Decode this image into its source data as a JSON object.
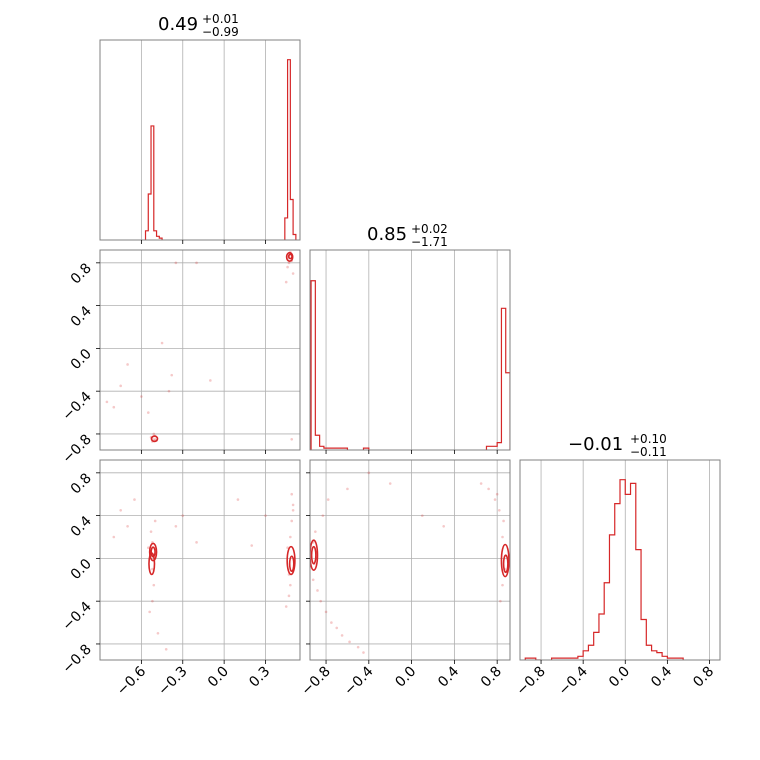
{
  "colors": {
    "line": "#d62728",
    "grid": "#b0b0b0",
    "frame": "#808080"
  },
  "chart_data": [
    {
      "type": "histogram",
      "panel": "param1-marginal",
      "title_main": "0.49",
      "title_plus": "+0.01",
      "title_minus": "−0.99",
      "xlim": [
        -0.9,
        0.55
      ],
      "xticks": [
        -0.6,
        -0.3,
        0.0,
        0.3
      ],
      "grid": true,
      "bins": [
        {
          "x0": -0.57,
          "x1": -0.55,
          "v": 0.05
        },
        {
          "x0": -0.55,
          "x1": -0.53,
          "v": 0.25
        },
        {
          "x0": -0.53,
          "x1": -0.51,
          "v": 0.62
        },
        {
          "x0": -0.51,
          "x1": -0.49,
          "v": 0.05
        },
        {
          "x0": -0.49,
          "x1": -0.47,
          "v": 0.02
        },
        {
          "x0": -0.47,
          "x1": -0.45,
          "v": 0.01
        },
        {
          "x0": 0.44,
          "x1": 0.46,
          "v": 0.12
        },
        {
          "x0": 0.46,
          "x1": 0.48,
          "v": 0.98
        },
        {
          "x0": 0.48,
          "x1": 0.5,
          "v": 0.22
        },
        {
          "x0": 0.5,
          "x1": 0.52,
          "v": 0.03
        }
      ]
    },
    {
      "type": "histogram",
      "panel": "param2-marginal",
      "title_main": "0.85",
      "title_plus": "+0.02",
      "title_minus": "−1.71",
      "xlim": [
        -0.95,
        0.92
      ],
      "xticks": [
        -0.8,
        -0.4,
        0.0,
        0.4,
        0.8
      ],
      "grid": true,
      "bins": [
        {
          "x0": -0.94,
          "x1": -0.9,
          "v": 0.92
        },
        {
          "x0": -0.9,
          "x1": -0.86,
          "v": 0.08
        },
        {
          "x0": -0.86,
          "x1": -0.82,
          "v": 0.02
        },
        {
          "x0": -0.82,
          "x1": -0.6,
          "v": 0.01
        },
        {
          "x0": -0.45,
          "x1": -0.4,
          "v": 0.01
        },
        {
          "x0": 0.7,
          "x1": 0.8,
          "v": 0.02
        },
        {
          "x0": 0.8,
          "x1": 0.84,
          "v": 0.04
        },
        {
          "x0": 0.84,
          "x1": 0.88,
          "v": 0.77
        },
        {
          "x0": 0.88,
          "x1": 0.92,
          "v": 0.42
        }
      ]
    },
    {
      "type": "histogram",
      "panel": "param3-marginal",
      "title_main": "−0.01",
      "title_plus": "+0.10",
      "title_minus": "−0.11",
      "xlim": [
        -1.0,
        0.9
      ],
      "xticks": [
        -0.8,
        -0.4,
        0.0,
        0.4,
        0.8
      ],
      "grid": true,
      "bins": [
        {
          "x0": -0.95,
          "x1": -0.9,
          "v": 0.01
        },
        {
          "x0": -0.9,
          "x1": -0.85,
          "v": 0.01
        },
        {
          "x0": -0.85,
          "x1": -0.8,
          "v": 0.0
        },
        {
          "x0": -0.7,
          "x1": -0.65,
          "v": 0.01
        },
        {
          "x0": -0.65,
          "x1": -0.6,
          "v": 0.01
        },
        {
          "x0": -0.6,
          "x1": -0.55,
          "v": 0.01
        },
        {
          "x0": -0.55,
          "x1": -0.5,
          "v": 0.01
        },
        {
          "x0": -0.5,
          "x1": -0.45,
          "v": 0.01
        },
        {
          "x0": -0.45,
          "x1": -0.4,
          "v": 0.02
        },
        {
          "x0": -0.4,
          "x1": -0.35,
          "v": 0.05
        },
        {
          "x0": -0.35,
          "x1": -0.3,
          "v": 0.08
        },
        {
          "x0": -0.3,
          "x1": -0.25,
          "v": 0.15
        },
        {
          "x0": -0.25,
          "x1": -0.2,
          "v": 0.25
        },
        {
          "x0": -0.2,
          "x1": -0.15,
          "v": 0.42
        },
        {
          "x0": -0.15,
          "x1": -0.1,
          "v": 0.68
        },
        {
          "x0": -0.1,
          "x1": -0.05,
          "v": 0.85
        },
        {
          "x0": -0.05,
          "x1": 0.0,
          "v": 0.98
        },
        {
          "x0": 0.0,
          "x1": 0.05,
          "v": 0.9
        },
        {
          "x0": 0.05,
          "x1": 0.1,
          "v": 0.96
        },
        {
          "x0": 0.1,
          "x1": 0.15,
          "v": 0.6
        },
        {
          "x0": 0.15,
          "x1": 0.2,
          "v": 0.22
        },
        {
          "x0": 0.2,
          "x1": 0.25,
          "v": 0.08
        },
        {
          "x0": 0.25,
          "x1": 0.3,
          "v": 0.05
        },
        {
          "x0": 0.3,
          "x1": 0.35,
          "v": 0.04
        },
        {
          "x0": 0.35,
          "x1": 0.4,
          "v": 0.02
        },
        {
          "x0": 0.4,
          "x1": 0.45,
          "v": 0.01
        },
        {
          "x0": 0.45,
          "x1": 0.5,
          "v": 0.01
        },
        {
          "x0": 0.5,
          "x1": 0.55,
          "v": 0.01
        }
      ]
    },
    {
      "type": "scatter",
      "panel": "param1-vs-param2",
      "xlim": [
        -0.9,
        0.55
      ],
      "ylim": [
        -0.95,
        0.92
      ],
      "yticks": [
        -0.8,
        -0.4,
        0.0,
        0.4,
        0.8
      ],
      "grid": true,
      "points": [
        [
          -0.52,
          -0.84
        ],
        [
          -0.51,
          -0.86
        ],
        [
          -0.5,
          -0.85
        ],
        [
          -0.53,
          -0.83
        ],
        [
          -0.52,
          -0.87
        ],
        [
          -0.5,
          -0.82
        ],
        [
          -0.49,
          -0.86
        ],
        [
          -0.51,
          -0.8
        ],
        [
          -0.55,
          -0.6
        ],
        [
          -0.6,
          -0.45
        ],
        [
          -0.75,
          -0.35
        ],
        [
          -0.8,
          -0.55
        ],
        [
          -0.7,
          -0.15
        ],
        [
          -0.4,
          -0.4
        ],
        [
          -0.38,
          -0.25
        ],
        [
          -0.35,
          0.8
        ],
        [
          -0.2,
          0.8
        ],
        [
          -0.1,
          -0.3
        ],
        [
          -0.85,
          -0.5
        ],
        [
          -0.45,
          0.05
        ],
        [
          0.46,
          0.84
        ],
        [
          0.47,
          0.86
        ],
        [
          0.48,
          0.88
        ],
        [
          0.49,
          0.82
        ],
        [
          0.47,
          0.8
        ],
        [
          0.48,
          0.9
        ],
        [
          0.46,
          0.76
        ],
        [
          0.5,
          0.7
        ],
        [
          0.45,
          0.62
        ],
        [
          0.49,
          -0.85
        ]
      ],
      "contours": [
        {
          "cx": -0.505,
          "cy": -0.845,
          "rx": 0.022,
          "ry": 0.025
        },
        {
          "cx": 0.475,
          "cy": 0.855,
          "rx": 0.022,
          "ry": 0.04
        },
        {
          "cx": 0.48,
          "cy": 0.86,
          "rx": 0.012,
          "ry": 0.02
        }
      ]
    },
    {
      "type": "scatter",
      "panel": "param1-vs-param3",
      "xlim": [
        -0.9,
        0.55
      ],
      "ylim": [
        -0.95,
        0.92
      ],
      "yticks": [
        -0.8,
        -0.4,
        0.0,
        0.4,
        0.8
      ],
      "xticks": [
        -0.6,
        -0.3,
        0.0,
        0.3
      ],
      "grid": true,
      "points": [
        [
          -0.52,
          0.15
        ],
        [
          -0.52,
          -0.1
        ],
        [
          -0.53,
          0.25
        ],
        [
          -0.51,
          -0.25
        ],
        [
          -0.52,
          -0.4
        ],
        [
          -0.54,
          -0.5
        ],
        [
          -0.55,
          0.1
        ],
        [
          -0.5,
          0.35
        ],
        [
          -0.48,
          -0.7
        ],
        [
          -0.42,
          -0.85
        ],
        [
          -0.75,
          0.45
        ],
        [
          -0.7,
          0.3
        ],
        [
          -0.65,
          0.55
        ],
        [
          -0.35,
          0.3
        ],
        [
          -0.3,
          0.4
        ],
        [
          0.48,
          0.2
        ],
        [
          0.49,
          0.35
        ],
        [
          0.5,
          0.45
        ],
        [
          0.47,
          -0.15
        ],
        [
          0.48,
          -0.25
        ],
        [
          0.46,
          0.1
        ],
        [
          0.49,
          0.6
        ],
        [
          0.5,
          0.5
        ],
        [
          0.47,
          -0.35
        ],
        [
          0.45,
          -0.45
        ],
        [
          -0.2,
          0.15
        ],
        [
          0.1,
          0.55
        ],
        [
          0.3,
          0.4
        ],
        [
          -0.8,
          0.2
        ],
        [
          0.2,
          0.12
        ]
      ],
      "contours": [
        {
          "cx": -0.515,
          "cy": 0.06,
          "rx": 0.025,
          "ry": 0.08
        },
        {
          "cx": -0.515,
          "cy": 0.06,
          "rx": 0.014,
          "ry": 0.045
        },
        {
          "cx": -0.525,
          "cy": -0.05,
          "rx": 0.02,
          "ry": 0.1
        },
        {
          "cx": 0.485,
          "cy": -0.02,
          "rx": 0.028,
          "ry": 0.13
        },
        {
          "cx": 0.49,
          "cy": -0.05,
          "rx": 0.015,
          "ry": 0.07
        }
      ]
    },
    {
      "type": "scatter",
      "panel": "param2-vs-param3",
      "xlim": [
        -0.95,
        0.92
      ],
      "ylim": [
        -0.95,
        0.92
      ],
      "xticks": [
        -0.8,
        -0.4,
        0.0,
        0.4,
        0.8
      ],
      "grid": true,
      "points": [
        [
          -0.92,
          0.15
        ],
        [
          -0.91,
          -0.05
        ],
        [
          -0.9,
          0.25
        ],
        [
          -0.92,
          -0.2
        ],
        [
          -0.88,
          -0.3
        ],
        [
          -0.85,
          -0.4
        ],
        [
          -0.8,
          -0.5
        ],
        [
          -0.75,
          -0.6
        ],
        [
          -0.7,
          -0.65
        ],
        [
          -0.65,
          -0.72
        ],
        [
          -0.58,
          -0.78
        ],
        [
          -0.5,
          -0.83
        ],
        [
          -0.45,
          -0.88
        ],
        [
          -0.83,
          0.4
        ],
        [
          -0.78,
          0.55
        ],
        [
          -0.6,
          0.65
        ],
        [
          -0.4,
          0.8
        ],
        [
          -0.2,
          0.7
        ],
        [
          0.85,
          0.2
        ],
        [
          0.86,
          0.35
        ],
        [
          0.82,
          0.45
        ],
        [
          0.78,
          0.55
        ],
        [
          0.72,
          0.65
        ],
        [
          0.65,
          0.7
        ],
        [
          0.85,
          -0.25
        ],
        [
          0.83,
          -0.4
        ],
        [
          0.87,
          -0.1
        ],
        [
          0.8,
          0.6
        ],
        [
          0.1,
          0.4
        ],
        [
          0.3,
          0.3
        ]
      ],
      "contours": [
        {
          "cx": -0.915,
          "cy": 0.03,
          "rx": 0.035,
          "ry": 0.14
        },
        {
          "cx": -0.915,
          "cy": 0.03,
          "rx": 0.02,
          "ry": 0.08
        },
        {
          "cx": 0.875,
          "cy": -0.02,
          "rx": 0.035,
          "ry": 0.15
        },
        {
          "cx": 0.88,
          "cy": -0.05,
          "rx": 0.02,
          "ry": 0.08
        }
      ]
    }
  ]
}
